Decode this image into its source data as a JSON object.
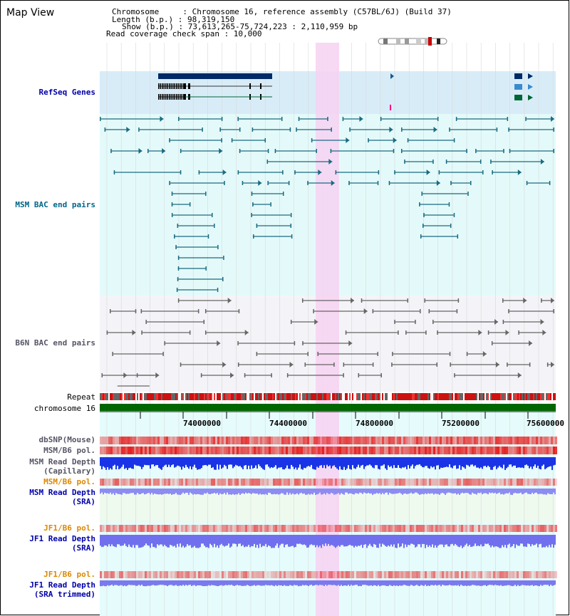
{
  "header": {
    "title": "Map View",
    "chromosome_line": "Chromosome     : Chromosome 16, reference assembly (C57BL/6J) (Build 37)",
    "length_line": "Length (b.p.) : 98,319,150",
    "show_line": "Show (b.p.) : 73,613,265-75,724,223 : 2,110,959 bp",
    "coverage_line": "Read coverage check span : 10,000"
  },
  "tracks": {
    "refseq": "RefSeq Genes",
    "msm_bac": "MSM BAC end pairs",
    "b6n_bac": "B6N BAC end pairs",
    "repeat": "Repeat",
    "chromosome": "chromosome 16",
    "dbsnp": "dbSNP(Mouse)",
    "msm_b6_pol_1": "MSM/B6 pol.",
    "msm_read_depth_cap_1": "MSM Read Depth",
    "msm_read_depth_cap_2": "(Capillary)",
    "msm_b6_pol_2": "MSM/B6 pol.",
    "msm_read_depth_sra_1": "MSM Read Depth",
    "msm_read_depth_sra_2": "(SRA)",
    "jf1_b6_pol_1": "JF1/B6 pol.",
    "jf1_read_depth_sra_1": "JF1 Read Depth",
    "jf1_read_depth_sra_2": "(SRA)",
    "jf1_b6_pol_2": "JF1/B6 pol.",
    "jf1_read_depth_trim_1": "JF1 Read Depth",
    "jf1_read_depth_trim_2": "(SRA trimmed)"
  },
  "ruler": {
    "ticks": [
      "74000000",
      "74400000",
      "74800000",
      "75200000",
      "75600000"
    ]
  },
  "colors": {
    "refseq_bg": "#d8ecf8",
    "msm_bg": "#e4fafa",
    "b6n_bg": "#f4f4f8",
    "highlight": "#f7d2f2",
    "chromosome_bar": "#006600",
    "msm_bac_line": "#1a6a80",
    "b6n_bac_line": "#666666",
    "gene_dark": "#002a66",
    "gene_green": "#006633",
    "read_depth_cap": "#1a33e6",
    "read_depth_sra": "#8c8cf2",
    "pol_red": "#e62626",
    "label_blue": "#0000aa",
    "label_orange": "#dd8800",
    "label_teal": "#006688",
    "label_gray": "#555566"
  }
}
